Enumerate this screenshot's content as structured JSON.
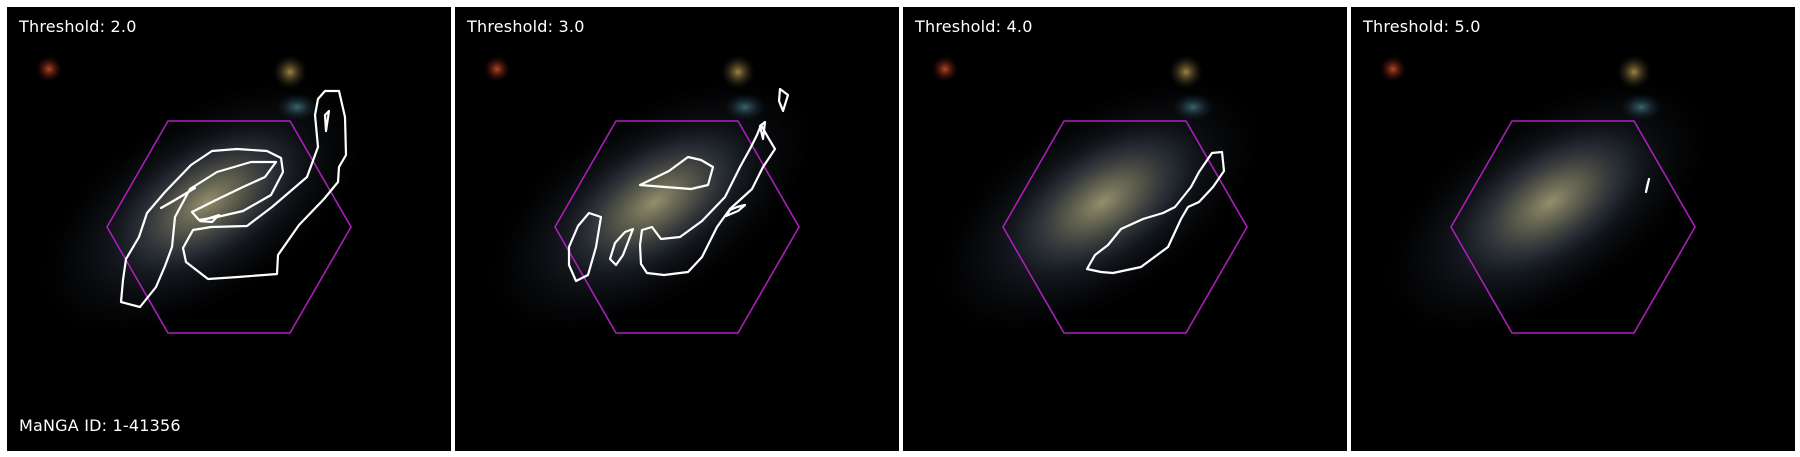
{
  "figure": {
    "manga_id_label": "MaNGA ID: 1-41356",
    "panels": [
      {
        "title": "Threshold: 2.0"
      },
      {
        "title": "Threshold: 3.0"
      },
      {
        "title": "Threshold: 4.0"
      },
      {
        "title": "Threshold: 5.0"
      }
    ]
  },
  "colors": {
    "background": "#000000",
    "hexagon": "#b020c0",
    "contour": "#ffffff",
    "text": "#ffffff"
  }
}
